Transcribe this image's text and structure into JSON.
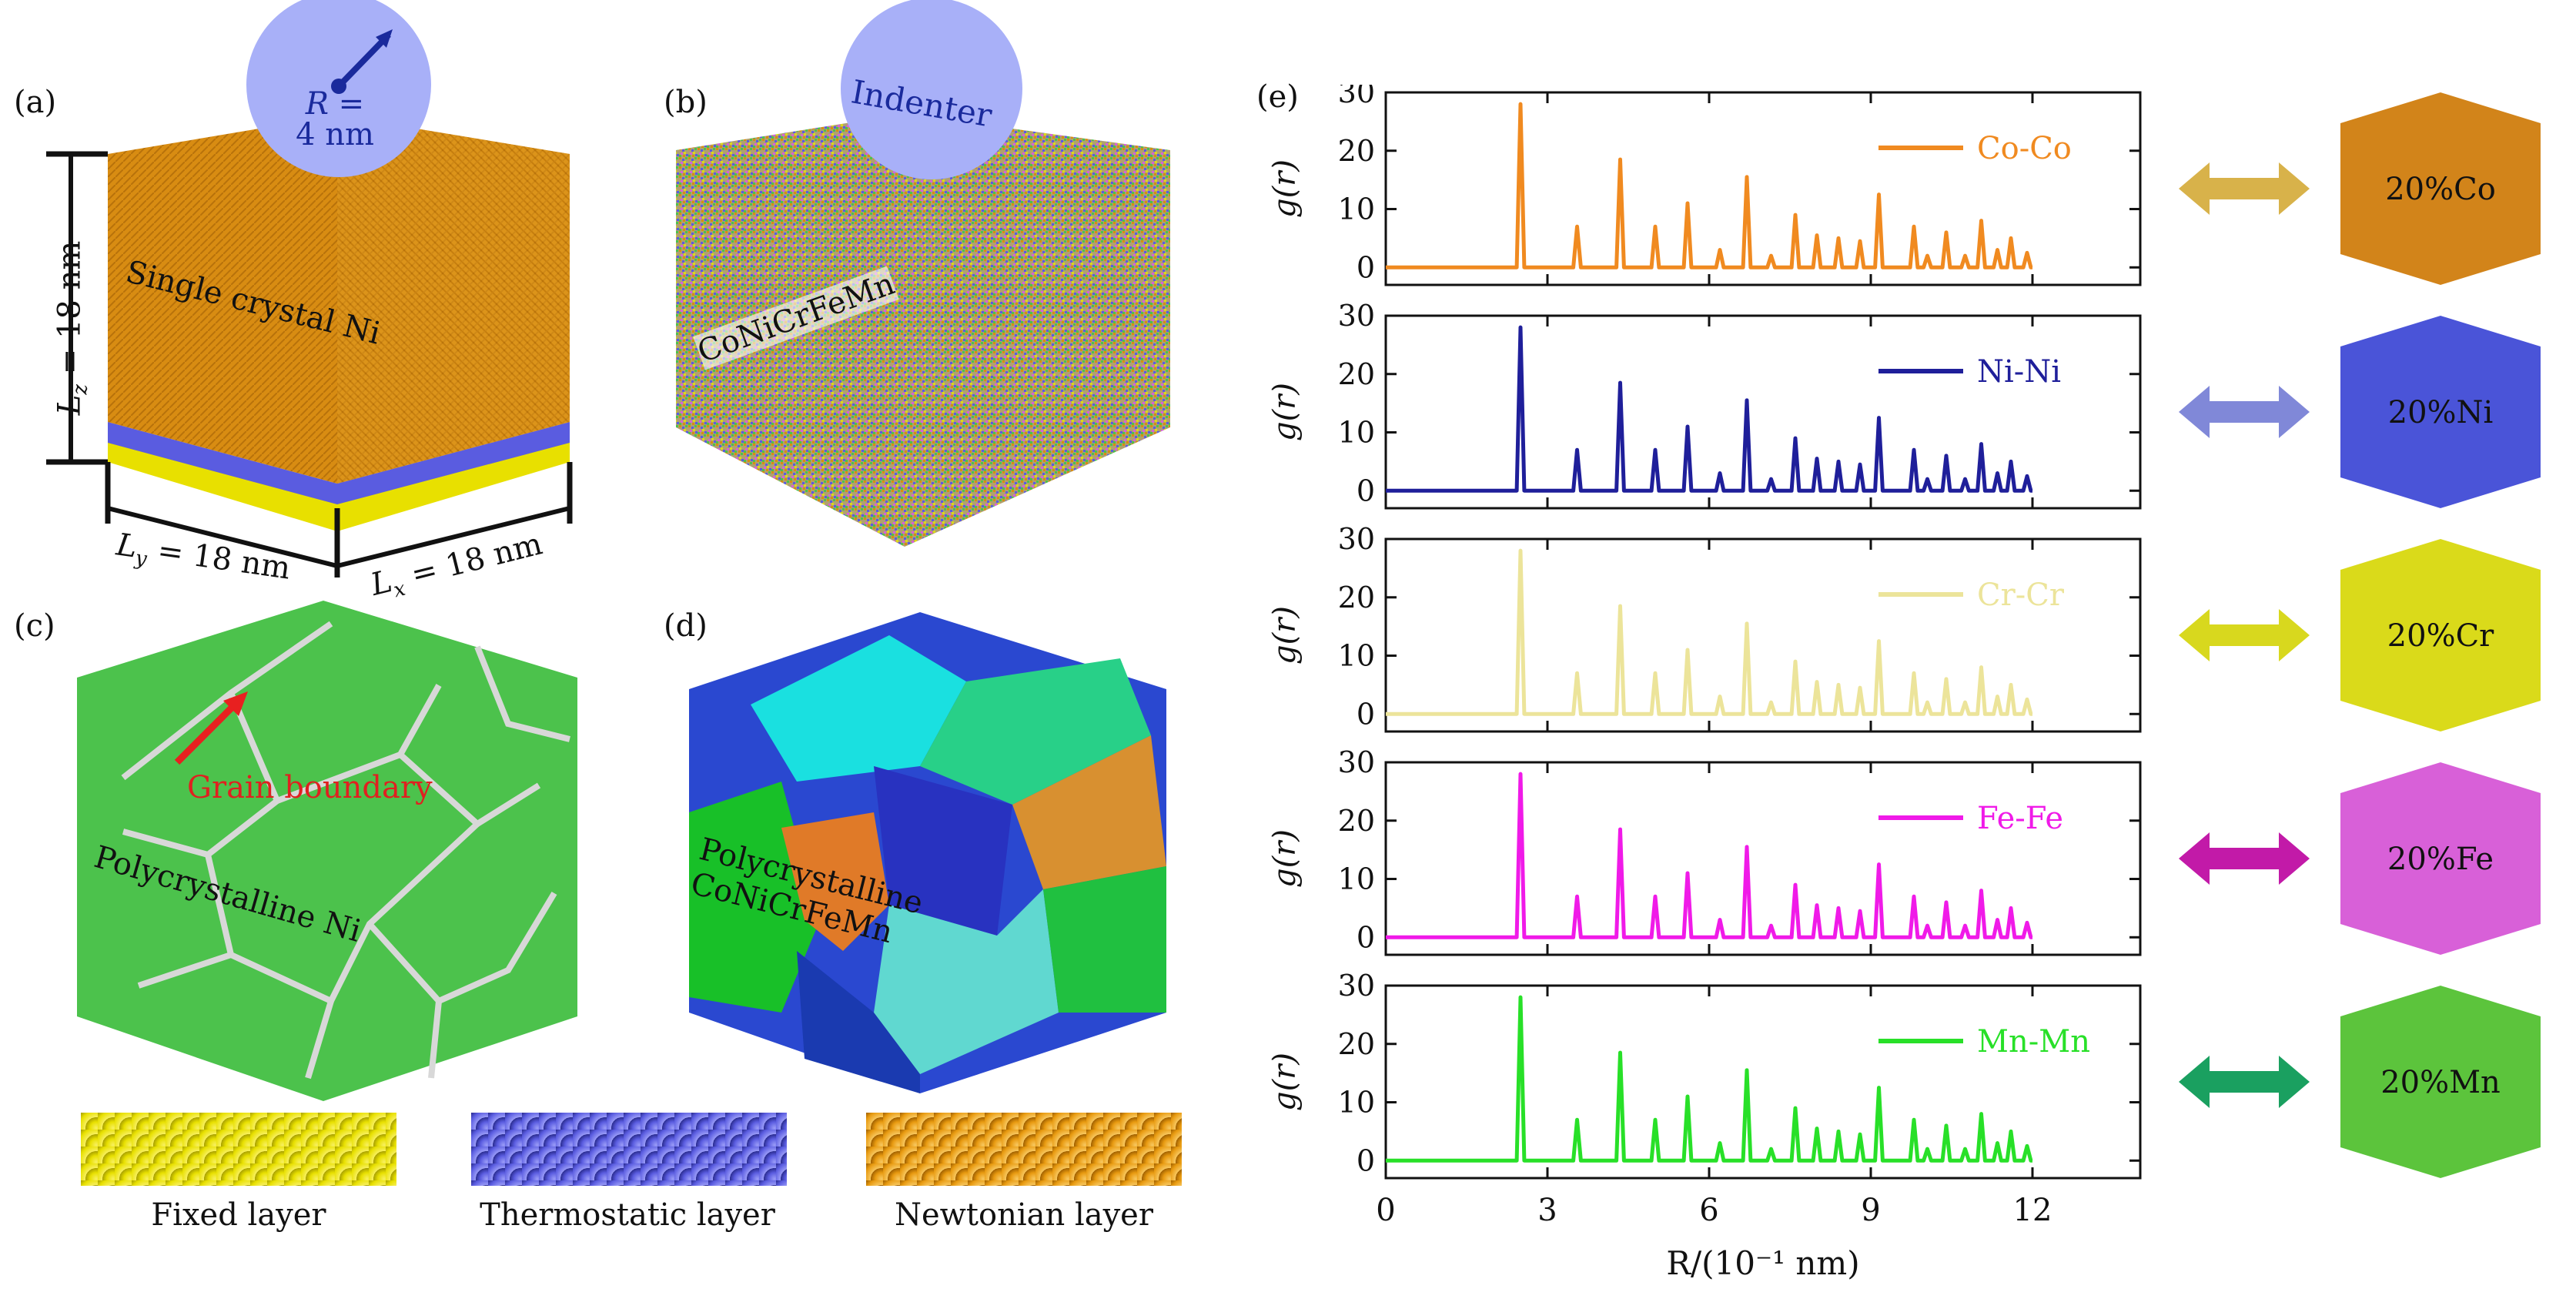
{
  "panels": {
    "a": {
      "letter": "(a)",
      "radius_label": "R =",
      "radius_value": "4 nm",
      "material": "Single crystal Ni",
      "lz": "L",
      "lz_sub": "z",
      "lz_rest": " = 18 nm",
      "ly": "L",
      "ly_sub": "y",
      "ly_rest": " = 18 nm",
      "lx": "L",
      "lx_sub": "x",
      "lx_rest": " = 18 nm"
    },
    "b": {
      "letter": "(b)",
      "indenter": "Indenter",
      "material": "CoNiCrFeMn"
    },
    "c": {
      "letter": "(c)",
      "grain_boundary": "Grain boundary",
      "material": "Polycrystalline Ni"
    },
    "d": {
      "letter": "(d)",
      "material_line1": "Polycrystalline",
      "material_line2": "CoNiCrFeMn"
    },
    "e": {
      "letter": "(e)"
    }
  },
  "layers": [
    {
      "label": "Fixed layer",
      "color": "#e8e000"
    },
    {
      "label": "Thermostatic layer",
      "color": "#5a5ce0"
    },
    {
      "label": "Newtonian layer",
      "color": "#e89a10"
    }
  ],
  "colors": {
    "ni_crystal": "#d88c12",
    "grain_green": "#4cc24c",
    "indenter": "#a8b0f8",
    "fixed": "#e8e000",
    "thermo": "#5a5ce0"
  },
  "chart_data": {
    "type": "line",
    "xlabel": "R/(10⁻¹ nm)",
    "ylabel": "g(r)",
    "xlim": [
      0,
      14
    ],
    "ylim": [
      -3,
      30
    ],
    "xticks": [
      "0",
      "3",
      "6",
      "9",
      "12"
    ],
    "yticks": [
      "0",
      "10",
      "20",
      "30"
    ],
    "peaks": [
      {
        "x": 2.5,
        "y": 28
      },
      {
        "x": 3.55,
        "y": 7
      },
      {
        "x": 4.35,
        "y": 18.5
      },
      {
        "x": 5.0,
        "y": 7
      },
      {
        "x": 5.6,
        "y": 11
      },
      {
        "x": 6.2,
        "y": 3
      },
      {
        "x": 6.7,
        "y": 15.5
      },
      {
        "x": 7.15,
        "y": 2
      },
      {
        "x": 7.6,
        "y": 9
      },
      {
        "x": 8.0,
        "y": 5.5
      },
      {
        "x": 8.4,
        "y": 5
      },
      {
        "x": 8.8,
        "y": 4.5
      },
      {
        "x": 9.15,
        "y": 12.5
      },
      {
        "x": 9.8,
        "y": 7
      },
      {
        "x": 10.05,
        "y": 2
      },
      {
        "x": 10.4,
        "y": 6
      },
      {
        "x": 10.75,
        "y": 2
      },
      {
        "x": 11.05,
        "y": 8
      },
      {
        "x": 11.35,
        "y": 3
      },
      {
        "x": 11.6,
        "y": 5
      },
      {
        "x": 11.9,
        "y": 2.5
      }
    ],
    "series": [
      {
        "name": "Co-Co",
        "color": "#f08a20",
        "cube_label": "20%Co",
        "cube_color": "#d2841a",
        "arrow": "#d8b24a"
      },
      {
        "name": "Ni-Ni",
        "color": "#1f1f9a",
        "cube_label": "20%Ni",
        "cube_color": "#4a54d8",
        "arrow": "#8088d8"
      },
      {
        "name": "Cr-Cr",
        "color": "#ece49a",
        "cube_label": "20%Cr",
        "cube_color": "#dada1a",
        "arrow": "#d8d81e"
      },
      {
        "name": "Fe-Fe",
        "color": "#f01ae8",
        "cube_label": "20%Fe",
        "cube_color": "#d860d8",
        "arrow": "#c21aa8"
      },
      {
        "name": "Mn-Mn",
        "color": "#28e028",
        "cube_label": "20%Mn",
        "cube_color": "#5cc43c",
        "arrow": "#1aa060"
      }
    ]
  }
}
